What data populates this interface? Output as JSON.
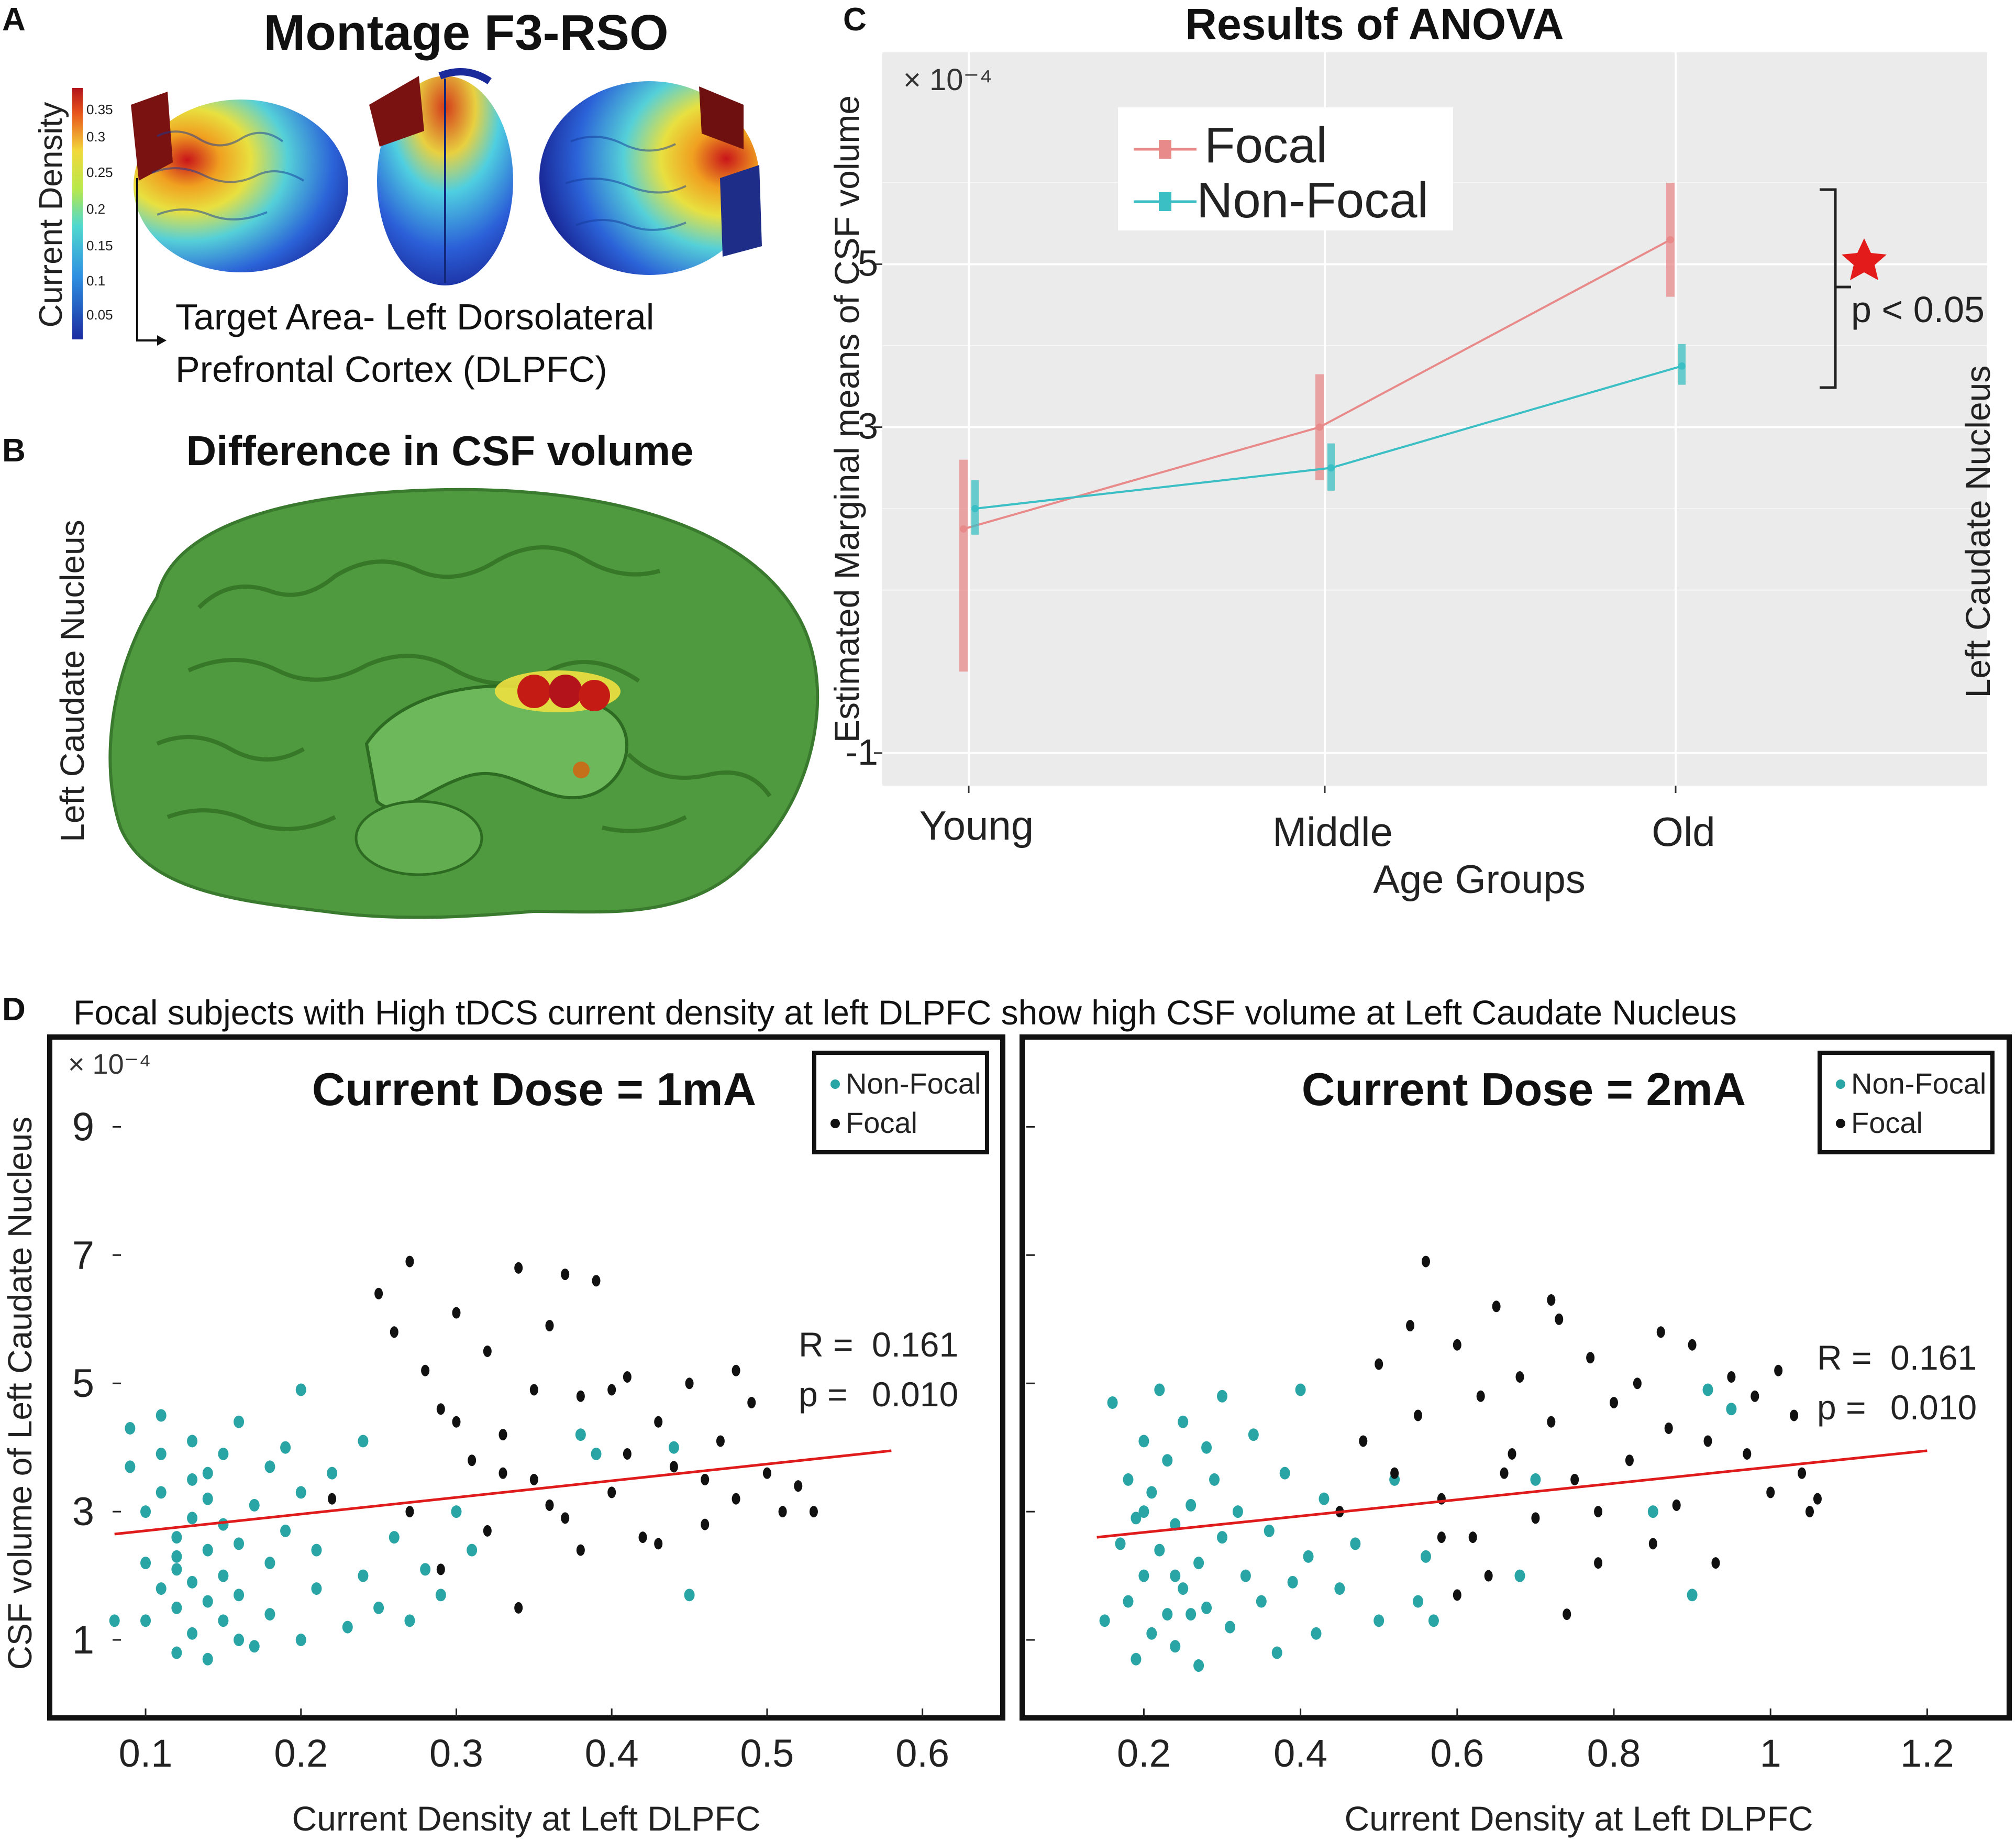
{
  "colors": {
    "focal_anova": "#e88a8a",
    "nonfocal_anova": "#3bbfc4",
    "panel_c_bg": "#ebebeb",
    "nonfocal_dot": "#2aa5a5",
    "focal_dot": "#111111",
    "fit_line": "#e01b1b",
    "brain_green": "#4f9a3e",
    "star": "#e31b1b"
  },
  "panel_labels": {
    "a": "A",
    "b": "B",
    "c": "C",
    "d": "D"
  },
  "panel_a": {
    "title": "Montage F3-RSO",
    "colorbar_label": "Current Density",
    "colorbar_ticks": [
      "0.35",
      "0.3",
      "0.25",
      "0.2",
      "0.15",
      "0.1",
      "0.05"
    ],
    "target_line1": "Target Area- Left Dorsolateral",
    "target_line2": "Prefrontal Cortex (DLPFC)"
  },
  "panel_b": {
    "title": "Difference in CSF volume",
    "side_label": "Left Caudate Nucleus"
  },
  "panel_d": {
    "heading": "Focal subjects with High tDCS current density at left DLPFC show  high CSF volume at Left Caudate Nucleus"
  },
  "chart_data": [
    {
      "id": "anova",
      "type": "line",
      "title": "Results of ANOVA",
      "xlabel": "Age Groups",
      "ylabel": "Estimated Marginal means of CSF volume",
      "right_label": "Left Caudate Nucleus",
      "exponent": "× 10⁻⁴",
      "categories": [
        "Young",
        "Middle",
        "Old"
      ],
      "yticks": [
        {
          "value": -1,
          "label": "-1"
        },
        {
          "value": 3,
          "label": "3"
        },
        {
          "value": 5,
          "label": "5"
        }
      ],
      "ylim": [
        -1.4,
        7.6
      ],
      "series": [
        {
          "name": "Focal",
          "values": [
            1.75,
            3.0,
            5.3
          ],
          "err_low": [
            0.0,
            2.35,
            4.6
          ],
          "err_high": [
            2.6,
            3.65,
            6.0
          ]
        },
        {
          "name": "Non-Focal",
          "values": [
            2.0,
            2.5,
            3.75
          ],
          "err_low": [
            1.68,
            2.22,
            3.52
          ],
          "err_high": [
            2.35,
            2.8,
            4.02
          ]
        }
      ],
      "annotation": "p < 0.05"
    },
    {
      "id": "scatter-1ma",
      "type": "scatter",
      "title": "Current Dose = 1mA",
      "xlabel": "Current Density at Left DLPFC",
      "ylabel": "CSF volume of Left Caudate Nucleus",
      "exponent": "× 10⁻⁴",
      "xticks": [
        "0.1",
        "0.2",
        "0.3",
        "0.4",
        "0.5",
        "0.6"
      ],
      "xtick_values": [
        0.1,
        0.2,
        0.3,
        0.4,
        0.5,
        0.6
      ],
      "yticks": [
        "1",
        "3",
        "5",
        "7",
        "9"
      ],
      "ytick_values": [
        1,
        3,
        5,
        7,
        9
      ],
      "xlim": [
        0.04,
        0.65
      ],
      "ylim": [
        -0.2,
        10.4
      ],
      "legend": [
        "Non-Focal",
        "Focal"
      ],
      "stats": {
        "r_label": "R =",
        "r": "0.161",
        "p_label": "p =",
        "p": "0.010"
      },
      "fit": {
        "x": [
          0.08,
          0.58
        ],
        "y": [
          2.65,
          3.95
        ]
      },
      "nonfocal": [
        [
          0.08,
          1.3
        ],
        [
          0.09,
          4.3
        ],
        [
          0.09,
          3.7
        ],
        [
          0.1,
          1.3
        ],
        [
          0.1,
          3.0
        ],
        [
          0.1,
          2.2
        ],
        [
          0.11,
          1.8
        ],
        [
          0.11,
          3.9
        ],
        [
          0.11,
          4.5
        ],
        [
          0.12,
          2.6
        ],
        [
          0.12,
          1.5
        ],
        [
          0.12,
          0.8
        ],
        [
          0.12,
          2.1
        ],
        [
          0.13,
          3.5
        ],
        [
          0.13,
          2.9
        ],
        [
          0.13,
          1.9
        ],
        [
          0.13,
          4.1
        ],
        [
          0.13,
          1.1
        ],
        [
          0.14,
          2.4
        ],
        [
          0.14,
          3.2
        ],
        [
          0.14,
          1.6
        ],
        [
          0.14,
          0.7
        ],
        [
          0.15,
          2.8
        ],
        [
          0.15,
          3.9
        ],
        [
          0.15,
          1.3
        ],
        [
          0.15,
          2.0
        ],
        [
          0.16,
          4.4
        ],
        [
          0.16,
          2.5
        ],
        [
          0.16,
          1.7
        ],
        [
          0.17,
          3.1
        ],
        [
          0.17,
          0.9
        ],
        [
          0.18,
          2.2
        ],
        [
          0.18,
          3.7
        ],
        [
          0.18,
          1.4
        ],
        [
          0.19,
          4.0
        ],
        [
          0.19,
          2.7
        ],
        [
          0.2,
          1.0
        ],
        [
          0.2,
          3.3
        ],
        [
          0.2,
          4.9
        ],
        [
          0.21,
          1.8
        ],
        [
          0.21,
          2.4
        ],
        [
          0.22,
          3.6
        ],
        [
          0.23,
          1.2
        ],
        [
          0.24,
          2.0
        ],
        [
          0.24,
          4.1
        ],
        [
          0.25,
          1.5
        ],
        [
          0.26,
          2.6
        ],
        [
          0.27,
          1.3
        ],
        [
          0.28,
          2.1
        ],
        [
          0.29,
          1.7
        ],
        [
          0.3,
          3.0
        ],
        [
          0.31,
          2.4
        ],
        [
          0.38,
          4.2
        ],
        [
          0.39,
          3.9
        ],
        [
          0.44,
          4.0
        ],
        [
          0.45,
          1.7
        ],
        [
          0.12,
          2.3
        ],
        [
          0.11,
          3.3
        ],
        [
          0.14,
          3.6
        ],
        [
          0.16,
          1.0
        ]
      ],
      "focal": [
        [
          0.25,
          6.4
        ],
        [
          0.26,
          5.8
        ],
        [
          0.27,
          6.9
        ],
        [
          0.28,
          5.2
        ],
        [
          0.29,
          4.6
        ],
        [
          0.3,
          6.1
        ],
        [
          0.31,
          3.8
        ],
        [
          0.32,
          5.5
        ],
        [
          0.33,
          4.2
        ],
        [
          0.34,
          6.8
        ],
        [
          0.35,
          3.5
        ],
        [
          0.36,
          5.9
        ],
        [
          0.37,
          2.9
        ],
        [
          0.38,
          4.8
        ],
        [
          0.39,
          6.6
        ],
        [
          0.4,
          3.3
        ],
        [
          0.41,
          5.1
        ],
        [
          0.42,
          2.6
        ],
        [
          0.43,
          4.4
        ],
        [
          0.44,
          3.7
        ],
        [
          0.45,
          5.0
        ],
        [
          0.46,
          2.8
        ],
        [
          0.47,
          4.1
        ],
        [
          0.48,
          3.2
        ],
        [
          0.49,
          4.7
        ],
        [
          0.5,
          3.6
        ],
        [
          0.51,
          3.0
        ],
        [
          0.52,
          3.4
        ],
        [
          0.53,
          3.0
        ],
        [
          0.27,
          3.0
        ],
        [
          0.29,
          2.1
        ],
        [
          0.32,
          2.7
        ],
        [
          0.34,
          1.5
        ],
        [
          0.36,
          3.1
        ],
        [
          0.38,
          2.4
        ],
        [
          0.41,
          3.9
        ],
        [
          0.43,
          2.5
        ],
        [
          0.46,
          3.5
        ],
        [
          0.48,
          5.2
        ],
        [
          0.33,
          3.6
        ],
        [
          0.3,
          4.4
        ],
        [
          0.4,
          4.9
        ],
        [
          0.22,
          3.2
        ],
        [
          0.35,
          4.9
        ],
        [
          0.37,
          6.7
        ]
      ]
    },
    {
      "id": "scatter-2ma",
      "type": "scatter",
      "title": "Current Dose = 2mA",
      "xlabel": "Current Density at Left DLPFC",
      "ylabel": "",
      "xticks": [
        "0.2",
        "0.4",
        "0.6",
        "0.8",
        "1",
        "1.2"
      ],
      "xtick_values": [
        0.2,
        0.4,
        0.6,
        0.8,
        1.0,
        1.2
      ],
      "yticks": [],
      "ytick_values": [
        1,
        3,
        5,
        7,
        9
      ],
      "xlim": [
        0.05,
        1.3
      ],
      "ylim": [
        -0.2,
        10.4
      ],
      "legend": [
        "Non-Focal",
        "Focal"
      ],
      "stats": {
        "r_label": "R =",
        "r": "0.161",
        "p_label": "p =",
        "p": "0.010"
      },
      "fit": {
        "x": [
          0.14,
          1.2
        ],
        "y": [
          2.6,
          3.95
        ]
      },
      "nonfocal": [
        [
          0.15,
          1.3
        ],
        [
          0.16,
          4.7
        ],
        [
          0.17,
          2.5
        ],
        [
          0.18,
          3.5
        ],
        [
          0.18,
          1.6
        ],
        [
          0.19,
          0.7
        ],
        [
          0.19,
          2.9
        ],
        [
          0.2,
          4.1
        ],
        [
          0.2,
          2.0
        ],
        [
          0.21,
          1.1
        ],
        [
          0.21,
          3.3
        ],
        [
          0.22,
          4.9
        ],
        [
          0.22,
          2.4
        ],
        [
          0.23,
          1.4
        ],
        [
          0.23,
          3.8
        ],
        [
          0.24,
          0.9
        ],
        [
          0.24,
          2.8
        ],
        [
          0.25,
          4.4
        ],
        [
          0.25,
          1.8
        ],
        [
          0.26,
          3.1
        ],
        [
          0.27,
          0.6
        ],
        [
          0.27,
          2.2
        ],
        [
          0.28,
          4.0
        ],
        [
          0.28,
          1.5
        ],
        [
          0.29,
          3.5
        ],
        [
          0.3,
          2.6
        ],
        [
          0.3,
          4.8
        ],
        [
          0.31,
          1.2
        ],
        [
          0.32,
          3.0
        ],
        [
          0.33,
          2.0
        ],
        [
          0.34,
          4.2
        ],
        [
          0.35,
          1.6
        ],
        [
          0.36,
          2.7
        ],
        [
          0.37,
          0.8
        ],
        [
          0.38,
          3.6
        ],
        [
          0.39,
          1.9
        ],
        [
          0.4,
          4.9
        ],
        [
          0.41,
          2.3
        ],
        [
          0.42,
          1.1
        ],
        [
          0.43,
          3.2
        ],
        [
          0.45,
          1.8
        ],
        [
          0.47,
          2.5
        ],
        [
          0.5,
          1.3
        ],
        [
          0.52,
          3.5
        ],
        [
          0.55,
          1.6
        ],
        [
          0.56,
          2.3
        ],
        [
          0.57,
          1.3
        ],
        [
          0.68,
          2.0
        ],
        [
          0.7,
          3.5
        ],
        [
          0.9,
          1.7
        ],
        [
          0.92,
          4.9
        ],
        [
          0.95,
          4.6
        ],
        [
          0.85,
          3.0
        ],
        [
          0.24,
          2.0
        ],
        [
          0.2,
          3.0
        ],
        [
          0.26,
          1.4
        ]
      ],
      "focal": [
        [
          0.45,
          3.0
        ],
        [
          0.48,
          4.1
        ],
        [
          0.5,
          5.3
        ],
        [
          0.52,
          3.6
        ],
        [
          0.54,
          5.9
        ],
        [
          0.55,
          4.5
        ],
        [
          0.56,
          6.9
        ],
        [
          0.58,
          3.2
        ],
        [
          0.6,
          5.6
        ],
        [
          0.62,
          2.6
        ],
        [
          0.63,
          4.8
        ],
        [
          0.65,
          6.2
        ],
        [
          0.67,
          3.9
        ],
        [
          0.68,
          5.1
        ],
        [
          0.7,
          2.9
        ],
        [
          0.72,
          4.4
        ],
        [
          0.73,
          6.0
        ],
        [
          0.75,
          3.5
        ],
        [
          0.77,
          5.4
        ],
        [
          0.78,
          2.2
        ],
        [
          0.8,
          4.7
        ],
        [
          0.82,
          3.8
        ],
        [
          0.83,
          5.0
        ],
        [
          0.85,
          2.5
        ],
        [
          0.87,
          4.3
        ],
        [
          0.88,
          3.1
        ],
        [
          0.9,
          5.6
        ],
        [
          0.92,
          4.1
        ],
        [
          0.93,
          2.2
        ],
        [
          0.95,
          5.1
        ],
        [
          0.97,
          3.9
        ],
        [
          0.98,
          4.8
        ],
        [
          1.0,
          3.3
        ],
        [
          1.01,
          5.2
        ],
        [
          1.03,
          4.5
        ],
        [
          1.04,
          3.6
        ],
        [
          1.05,
          3.0
        ],
        [
          1.06,
          3.2
        ],
        [
          0.58,
          2.6
        ],
        [
          0.6,
          1.7
        ],
        [
          0.64,
          2.0
        ],
        [
          0.74,
          1.4
        ],
        [
          0.78,
          3.0
        ],
        [
          0.66,
          3.6
        ],
        [
          0.72,
          6.3
        ],
        [
          0.86,
          5.8
        ]
      ]
    }
  ]
}
